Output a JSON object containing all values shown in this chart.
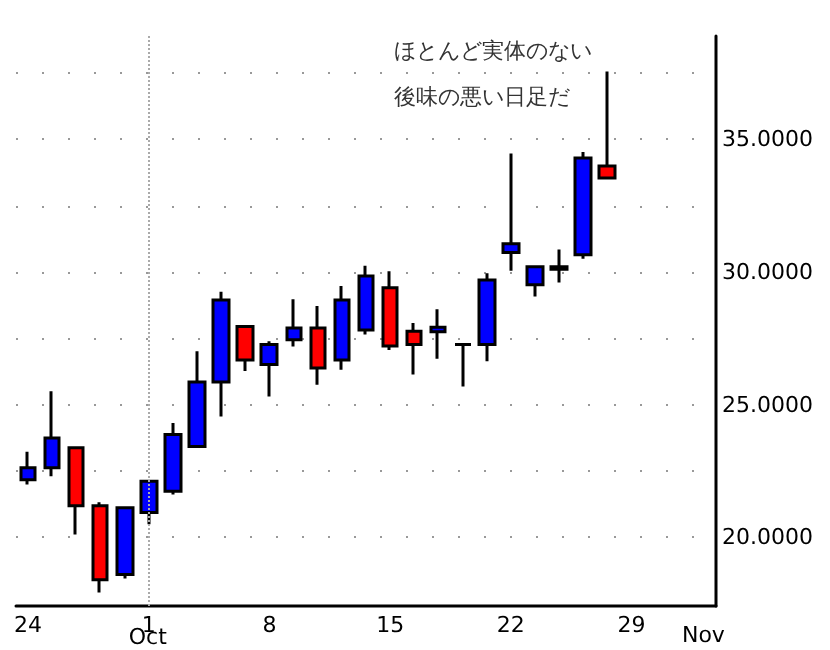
{
  "chart_data": {
    "type": "candlestick",
    "categories": [
      "24",
      null,
      null,
      null,
      null,
      "1",
      null,
      null,
      null,
      null,
      "8",
      null,
      null,
      null,
      null,
      "15",
      null,
      null,
      null,
      null,
      "22",
      null,
      null,
      null,
      null,
      "29",
      null,
      null,
      null
    ],
    "ohlc": [
      [
        22.16,
        23.22,
        21.98,
        22.61
      ],
      [
        22.61,
        25.5,
        22.29,
        23.74
      ],
      [
        23.37,
        23.37,
        20.1,
        21.18
      ],
      [
        21.18,
        21.31,
        17.91,
        18.39
      ],
      [
        18.59,
        21.11,
        18.44,
        21.11
      ],
      [
        20.93,
        22.11,
        20.48,
        22.11
      ],
      [
        21.73,
        24.3,
        21.61,
        23.87
      ],
      [
        23.42,
        27.01,
        23.37,
        25.85
      ],
      [
        25.85,
        29.25,
        24.55,
        28.94
      ],
      [
        27.94,
        27.94,
        26.26,
        26.68
      ],
      [
        26.51,
        27.39,
        25.3,
        27.26
      ],
      [
        27.44,
        28.97,
        27.19,
        27.89
      ],
      [
        27.89,
        28.72,
        25.75,
        26.38
      ],
      [
        26.68,
        29.47,
        26.31,
        28.94
      ],
      [
        27.81,
        30.23,
        27.64,
        29.85
      ],
      [
        29.4,
        30.03,
        27.06,
        27.21
      ],
      [
        27.76,
        28.07,
        26.13,
        27.26
      ],
      [
        27.74,
        28.59,
        26.73,
        27.91
      ],
      [
        27.26,
        27.26,
        25.68,
        27.26
      ],
      [
        27.26,
        29.95,
        26.63,
        29.7
      ],
      [
        30.73,
        34.47,
        30.05,
        31.06
      ],
      [
        29.52,
        30.2,
        29.07,
        30.2
      ],
      [
        30.2,
        30.85,
        29.6,
        30.1
      ],
      [
        30.65,
        34.52,
        30.5,
        34.3
      ],
      [
        34.0,
        37.56,
        33.54,
        33.54
      ],
      null,
      null,
      null,
      null
    ],
    "colors": [
      "#0000ff",
      "#0000ff",
      "#ff0000",
      "#ff0000",
      "#0000ff",
      "#0000ff",
      "#0000ff",
      "#0000ff",
      "#0000ff",
      "#ff0000",
      "#0000ff",
      "#0000ff",
      "#ff0000",
      "#0000ff",
      "#0000ff",
      "#ff0000",
      "#ff0000",
      "#0000ff",
      "#000000",
      "#0000ff",
      "#0000ff",
      "#0000ff",
      "#ff0000",
      "#0000ff",
      "#ff0000",
      null,
      null,
      null,
      null
    ],
    "ylim": [
      17.4,
      38.9
    ],
    "yticks": [
      {
        "value": 20,
        "label": "20.0000"
      },
      {
        "value": 22.5,
        "label": null
      },
      {
        "value": 25,
        "label": "25.0000"
      },
      {
        "value": 27.5,
        "label": null
      },
      {
        "value": 30,
        "label": "30.0000"
      },
      {
        "value": 32.5,
        "label": null
      },
      {
        "value": 35,
        "label": "35.0000"
      },
      {
        "value": 37.5,
        "label": null
      }
    ],
    "grid": "y",
    "ref_lines": [
      {
        "axis": "x",
        "value": "1",
        "line_style": "dotted"
      }
    ],
    "annotations": [
      "ほとんど実体のない",
      "後味の悪い日足だ",
      "Oct",
      "Nov"
    ]
  }
}
